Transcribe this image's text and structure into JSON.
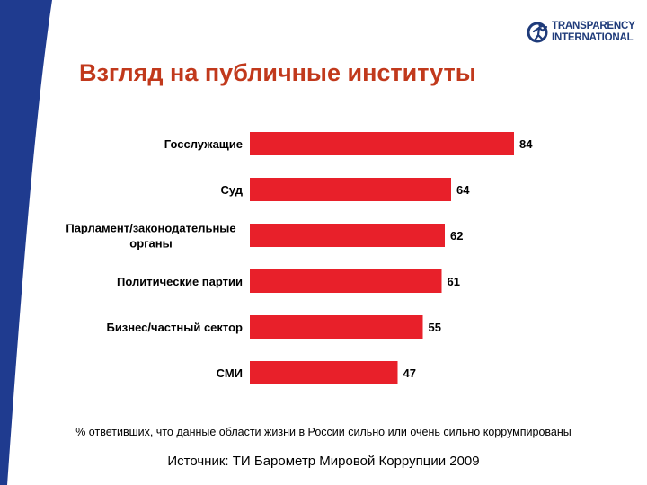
{
  "title": "Взгляд на публичные институты",
  "logo": {
    "line1": "TRANSPARENCY",
    "line2": "INTERNATIONAL",
    "icon": "globe-figure-icon"
  },
  "colors": {
    "bar": "#e8202a",
    "title": "#c1391c",
    "band": "#1f3b8f",
    "logo": "#1f3b7a"
  },
  "chart_data": {
    "type": "bar",
    "orientation": "horizontal",
    "categories": [
      "Госслужащие",
      "Суд",
      "Парламент/законодательные органы",
      "Политические партии",
      "Бизнес/частный сектор",
      "СМИ"
    ],
    "category_lines": [
      [
        "Госслужащие"
      ],
      [
        "Суд"
      ],
      [
        "Парламент/законодательные",
        "органы"
      ],
      [
        "Политические партии"
      ],
      [
        "Бизнес/частный сектор"
      ],
      [
        "СМИ"
      ]
    ],
    "values": [
      84,
      64,
      62,
      61,
      55,
      47
    ],
    "data_labels": [
      "84",
      "64",
      "62",
      "61",
      "55",
      "47"
    ],
    "xlim": [
      0,
      100
    ],
    "grid": false,
    "legend": "none"
  },
  "footnote": "% ответивших, что данные области жизни в России сильно или очень сильно коррумпированы",
  "source": "Источник: ТИ Барометр Мировой Коррупции 2009"
}
